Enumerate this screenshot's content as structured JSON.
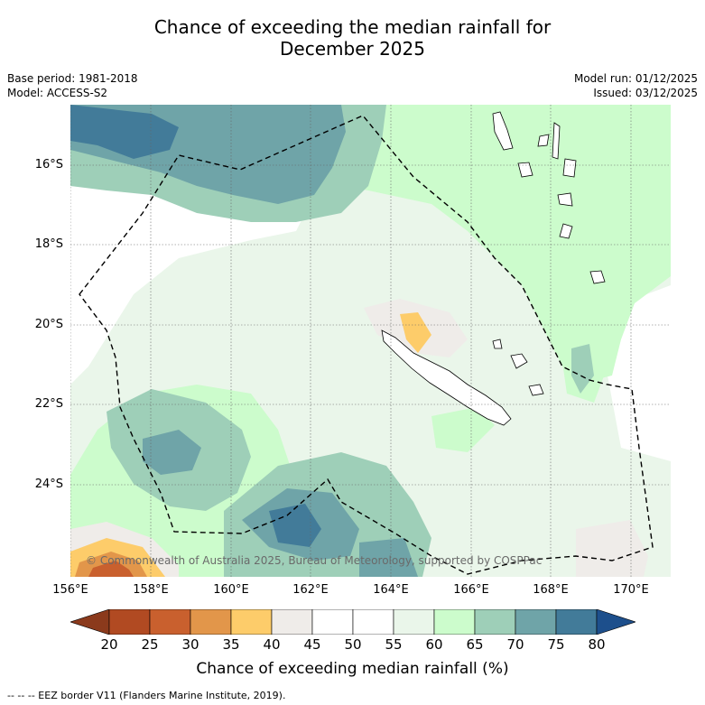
{
  "title": {
    "line1": "Chance of exceeding the median rainfall for",
    "line2": "December 2025"
  },
  "meta": {
    "base_period": "Base period: 1981-2018",
    "model": "Model: ACCESS-S2",
    "model_run": "Model run: 01/12/2025",
    "issued": "Issued: 03/12/2025"
  },
  "axes": {
    "lat_labels": [
      "16°S",
      "18°S",
      "20°S",
      "22°S",
      "24°S"
    ],
    "lon_labels": [
      "156°E",
      "158°E",
      "160°E",
      "162°E",
      "164°E",
      "166°E",
      "168°E",
      "170°E"
    ]
  },
  "copyright": "© Commonwealth of Australia 2025, Bureau of Meteorology, supported by COSPPac",
  "colorbar": {
    "title": "Chance of exceeding median rainfall (%)",
    "ticks": [
      "20",
      "25",
      "30",
      "35",
      "40",
      "45",
      "50",
      "55",
      "60",
      "65",
      "70",
      "75",
      "80"
    ],
    "colors": {
      "under": "#8b3a1c",
      "c20_25": "#b14a22",
      "c25_30": "#c9602e",
      "c30_35": "#e2964a",
      "c35_40": "#fdcc6a",
      "c40_45": "#efece9",
      "c45_50": "#ffffff",
      "c50_55": "#ffffff",
      "c55_60": "#eaf6ea",
      "c60_65": "#ccfccc",
      "c65_70": "#9ecfb8",
      "c70_75": "#6fa4a8",
      "c75_80": "#427b99",
      "over": "#1d4f8c"
    }
  },
  "footer": "--  --  -- EEZ border V11 (Flanders Marine Institute, 2019)."
}
